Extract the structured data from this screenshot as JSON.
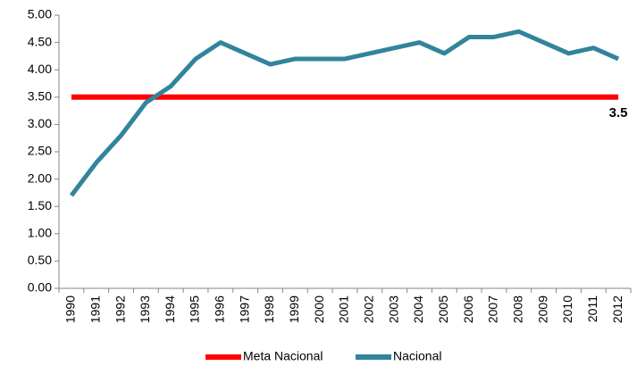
{
  "chart_data": {
    "type": "line",
    "categories": [
      "1990",
      "1991",
      "1992",
      "1993",
      "1994",
      "1995",
      "1996",
      "1997",
      "1998",
      "1999",
      "2000",
      "2001",
      "2002",
      "2003",
      "2004",
      "2005",
      "2006",
      "2007",
      "2008",
      "2009",
      "2010",
      "2011",
      "2012"
    ],
    "series": [
      {
        "name": "Meta Nacional",
        "color": "#ff0000",
        "values": [
          3.5,
          3.5,
          3.5,
          3.5,
          3.5,
          3.5,
          3.5,
          3.5,
          3.5,
          3.5,
          3.5,
          3.5,
          3.5,
          3.5,
          3.5,
          3.5,
          3.5,
          3.5,
          3.5,
          3.5,
          3.5,
          3.5,
          3.5
        ],
        "value_labels": [
          null,
          null,
          null,
          null,
          null,
          null,
          null,
          null,
          null,
          null,
          null,
          null,
          null,
          null,
          null,
          null,
          null,
          null,
          null,
          null,
          null,
          null,
          "3.5"
        ]
      },
      {
        "name": "Nacional",
        "color": "#31849b",
        "values": [
          1.7,
          2.3,
          2.8,
          3.4,
          3.7,
          4.2,
          4.5,
          4.3,
          4.1,
          4.2,
          4.2,
          4.2,
          4.3,
          4.4,
          4.5,
          4.3,
          4.6,
          4.6,
          4.7,
          4.5,
          4.3,
          4.4,
          4.2
        ]
      }
    ],
    "ylim": [
      0,
      5
    ],
    "yticks": [
      {
        "value": 0,
        "label": "0.00"
      },
      {
        "value": 0.5,
        "label": "0.50"
      },
      {
        "value": 1,
        "label": "1.00"
      },
      {
        "value": 1.5,
        "label": "1.50"
      },
      {
        "value": 2,
        "label": "2.00"
      },
      {
        "value": 2.5,
        "label": "2.50"
      },
      {
        "value": 3,
        "label": "3.00"
      },
      {
        "value": 3.5,
        "label": "3.50"
      },
      {
        "value": 4,
        "label": "4.00"
      },
      {
        "value": 4.5,
        "label": "4.50"
      },
      {
        "value": 5,
        "label": "5.00"
      }
    ],
    "grid": false,
    "legend": "bottom"
  }
}
